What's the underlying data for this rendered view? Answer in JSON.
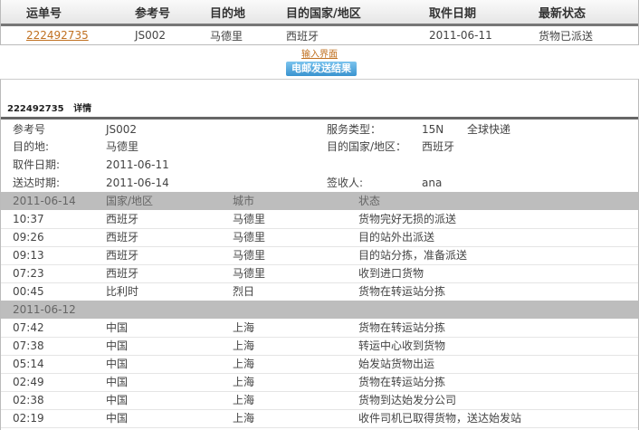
{
  "summary": {
    "headers": [
      "运单号",
      "参考号",
      "目的地",
      "目的国家/地区",
      "取件日期",
      "最新状态"
    ],
    "row": {
      "waybill": "222492735",
      "ref": "JS002",
      "dest": "马德里",
      "country": "西班牙",
      "pickup": "2011-06-11",
      "status": "货物已派送"
    }
  },
  "input_link": "输入界面",
  "email_button": "电邮发送结果",
  "detail": {
    "title_num": "222492735",
    "title_label": "详情",
    "ref_label": "参考号",
    "ref": "JS002",
    "service_label": "服务类型：",
    "service_code": "15N",
    "service_name": "全球快递",
    "dest_label": "目的地:",
    "dest": "马德里",
    "country_label": "目的国家/地区：",
    "country": "西班牙",
    "pickup_label": "取件日期:",
    "pickup": "2011-06-11",
    "delivered_label": "送达时期:",
    "delivered": "2011-06-14",
    "signer_label": "签收人:",
    "signer": "ana"
  },
  "tracking": {
    "headers": [
      "国家/地区",
      "城市",
      "状态"
    ],
    "groups": [
      {
        "date": "2011-06-14",
        "events": [
          [
            "10:37",
            "西班牙",
            "马德里",
            "货物完好无损的派送"
          ],
          [
            "09:26",
            "西班牙",
            "马德里",
            "目的站外出派送"
          ],
          [
            "09:13",
            "西班牙",
            "马德里",
            "目的站分拣，准备派送"
          ],
          [
            "07:23",
            "西班牙",
            "马德里",
            "收到进口货物"
          ],
          [
            "00:45",
            "比利时",
            "烈日",
            "货物在转运站分拣"
          ]
        ]
      },
      {
        "date": "2011-06-12",
        "events": [
          [
            "07:42",
            "中国",
            "上海",
            "货物在转运站分拣"
          ],
          [
            "07:38",
            "中国",
            "上海",
            "转运中心收到货物"
          ],
          [
            "05:14",
            "中国",
            "上海",
            "始发站货物出运"
          ],
          [
            "02:49",
            "中国",
            "上海",
            "货物在转运站分拣"
          ],
          [
            "02:38",
            "中国",
            "上海",
            "货物到达始发分公司"
          ],
          [
            "02:19",
            "中国",
            "上海",
            "收件司机已取得货物，送达始发站"
          ]
        ]
      }
    ]
  }
}
